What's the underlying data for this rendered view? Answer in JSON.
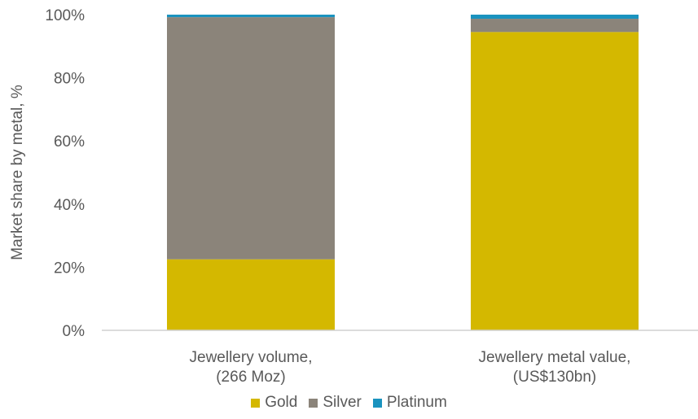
{
  "chart_data": {
    "type": "bar",
    "stacked": true,
    "categories": [
      [
        "Jewellery volume,",
        "(266 Moz)"
      ],
      [
        "Jewellery metal value,",
        "(US$130bn)"
      ]
    ],
    "series": [
      {
        "name": "Gold",
        "color": "#D4B800",
        "values": [
          22.5,
          94.5
        ]
      },
      {
        "name": "Silver",
        "color": "#8B847A",
        "values": [
          76.7,
          4.2
        ]
      },
      {
        "name": "Platinum",
        "color": "#1A93BF",
        "values": [
          0.8,
          1.3
        ]
      }
    ],
    "ylabel": "Market share by metal, %",
    "ylim": [
      0,
      100
    ],
    "yticks": [
      "0%",
      "20%",
      "40%",
      "60%",
      "80%",
      "100%"
    ],
    "grid": false,
    "legend_position": "bottom"
  }
}
